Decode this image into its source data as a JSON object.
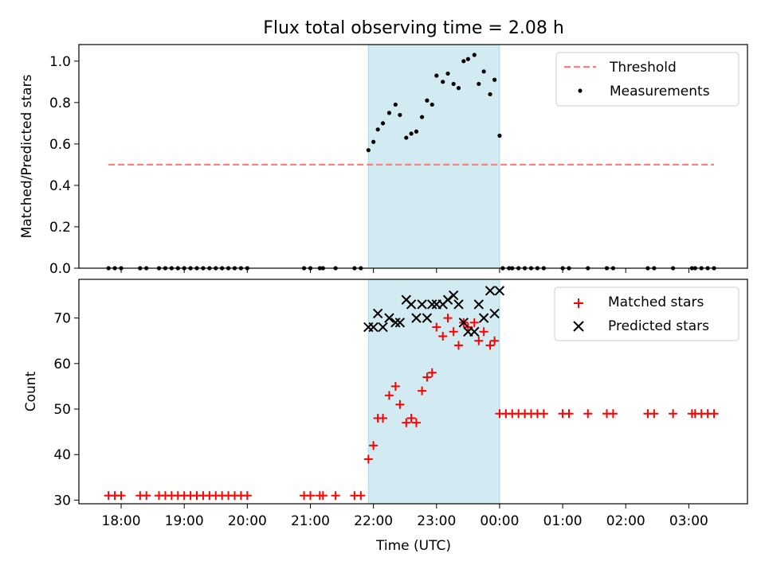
{
  "chart_data": [
    {
      "type": "scatter",
      "title": "Flux total observing time = 2.08 h",
      "xlabel": "",
      "ylabel": "Matched/Predicted stars",
      "x_unit": "hours UTC (continuing past midnight as 24+)",
      "xlim": [
        17.33,
        27.93
      ],
      "ylim": [
        0,
        1.08
      ],
      "yticks": [
        0.0,
        0.2,
        0.4,
        0.6,
        0.8,
        1.0
      ],
      "ytick_labels": [
        "0.0",
        "0.2",
        "0.4",
        "0.6",
        "0.8",
        "1.0"
      ],
      "shaded_interval": [
        21.92,
        24.0
      ],
      "shade_color": "#add8e6",
      "legend": "top-right",
      "threshold": {
        "name": "Threshold",
        "value": 0.5,
        "x_range": [
          17.8,
          27.4
        ],
        "color": "#ff7f7f",
        "style": "dashed"
      },
      "series": [
        {
          "name": "Measurements",
          "color": "#000000",
          "marker": "dot",
          "points": [
            [
              17.8,
              0
            ],
            [
              17.9,
              0
            ],
            [
              18.0,
              0
            ],
            [
              18.3,
              0
            ],
            [
              18.4,
              0
            ],
            [
              18.6,
              0
            ],
            [
              18.7,
              0
            ],
            [
              18.8,
              0
            ],
            [
              18.9,
              0
            ],
            [
              19.0,
              0
            ],
            [
              19.1,
              0
            ],
            [
              19.2,
              0
            ],
            [
              19.3,
              0
            ],
            [
              19.4,
              0
            ],
            [
              19.5,
              0
            ],
            [
              19.6,
              0
            ],
            [
              19.7,
              0
            ],
            [
              19.8,
              0
            ],
            [
              19.9,
              0
            ],
            [
              20.0,
              0
            ],
            [
              20.9,
              0
            ],
            [
              21.0,
              0
            ],
            [
              21.15,
              0
            ],
            [
              21.2,
              0
            ],
            [
              21.4,
              0
            ],
            [
              21.7,
              0
            ],
            [
              21.8,
              0
            ],
            [
              21.92,
              0.57
            ],
            [
              22.0,
              0.61
            ],
            [
              22.07,
              0.67
            ],
            [
              22.15,
              0.7
            ],
            [
              22.25,
              0.75
            ],
            [
              22.35,
              0.79
            ],
            [
              22.42,
              0.74
            ],
            [
              22.52,
              0.63
            ],
            [
              22.6,
              0.65
            ],
            [
              22.68,
              0.66
            ],
            [
              22.77,
              0.73
            ],
            [
              22.85,
              0.81
            ],
            [
              22.93,
              0.79
            ],
            [
              23.0,
              0.93
            ],
            [
              23.1,
              0.9
            ],
            [
              23.18,
              0.94
            ],
            [
              23.27,
              0.89
            ],
            [
              23.35,
              0.87
            ],
            [
              23.43,
              1.0
            ],
            [
              23.5,
              1.01
            ],
            [
              23.6,
              1.03
            ],
            [
              23.67,
              0.89
            ],
            [
              23.75,
              0.95
            ],
            [
              23.85,
              0.84
            ],
            [
              23.92,
              0.91
            ],
            [
              24.0,
              0.64
            ],
            [
              24.05,
              0
            ],
            [
              24.15,
              0
            ],
            [
              24.2,
              0
            ],
            [
              24.3,
              0
            ],
            [
              24.4,
              0
            ],
            [
              24.5,
              0
            ],
            [
              24.6,
              0
            ],
            [
              24.7,
              0
            ],
            [
              25.0,
              0
            ],
            [
              25.1,
              0
            ],
            [
              25.4,
              0
            ],
            [
              25.7,
              0
            ],
            [
              25.8,
              0
            ],
            [
              26.35,
              0
            ],
            [
              26.45,
              0
            ],
            [
              26.75,
              0
            ],
            [
              27.05,
              0
            ],
            [
              27.1,
              0
            ],
            [
              27.2,
              0
            ],
            [
              27.3,
              0
            ],
            [
              27.4,
              0
            ]
          ]
        }
      ]
    },
    {
      "type": "scatter",
      "title": "",
      "xlabel": "Time (UTC)",
      "ylabel": "Count",
      "x_unit": "hours UTC (continuing past midnight as 24+)",
      "xlim": [
        17.33,
        27.93
      ],
      "ylim": [
        29.2,
        78.5
      ],
      "yticks": [
        30,
        40,
        50,
        60,
        70
      ],
      "ytick_labels": [
        "30",
        "40",
        "50",
        "60",
        "70"
      ],
      "xticks": [
        18,
        19,
        20,
        21,
        22,
        23,
        24,
        25,
        26,
        27
      ],
      "xtick_labels": [
        "18:00",
        "19:00",
        "20:00",
        "21:00",
        "22:00",
        "23:00",
        "00:00",
        "01:00",
        "02:00",
        "03:00"
      ],
      "shaded_interval": [
        21.92,
        24.0
      ],
      "shade_color": "#add8e6",
      "legend": "top-right",
      "series": [
        {
          "name": "Matched stars",
          "color": "#ff0000",
          "marker": "plus",
          "points": [
            [
              17.8,
              31
            ],
            [
              17.9,
              31
            ],
            [
              18.0,
              31
            ],
            [
              18.3,
              31
            ],
            [
              18.4,
              31
            ],
            [
              18.6,
              31
            ],
            [
              18.7,
              31
            ],
            [
              18.8,
              31
            ],
            [
              18.9,
              31
            ],
            [
              19.0,
              31
            ],
            [
              19.1,
              31
            ],
            [
              19.2,
              31
            ],
            [
              19.3,
              31
            ],
            [
              19.4,
              31
            ],
            [
              19.5,
              31
            ],
            [
              19.6,
              31
            ],
            [
              19.7,
              31
            ],
            [
              19.8,
              31
            ],
            [
              19.9,
              31
            ],
            [
              20.0,
              31
            ],
            [
              20.9,
              31
            ],
            [
              21.0,
              31
            ],
            [
              21.15,
              31
            ],
            [
              21.2,
              31
            ],
            [
              21.4,
              31
            ],
            [
              21.7,
              31
            ],
            [
              21.8,
              31
            ],
            [
              21.92,
              39
            ],
            [
              22.0,
              42
            ],
            [
              22.07,
              48
            ],
            [
              22.15,
              48
            ],
            [
              22.25,
              53
            ],
            [
              22.35,
              55
            ],
            [
              22.42,
              51
            ],
            [
              22.52,
              47
            ],
            [
              22.6,
              48
            ],
            [
              22.68,
              47
            ],
            [
              22.77,
              54
            ],
            [
              22.85,
              57
            ],
            [
              22.93,
              58
            ],
            [
              23.0,
              68
            ],
            [
              23.1,
              66
            ],
            [
              23.18,
              70
            ],
            [
              23.27,
              67
            ],
            [
              23.35,
              64
            ],
            [
              23.43,
              69
            ],
            [
              23.5,
              68
            ],
            [
              23.6,
              69
            ],
            [
              23.67,
              65
            ],
            [
              23.75,
              67
            ],
            [
              23.85,
              64
            ],
            [
              23.92,
              65
            ],
            [
              24.0,
              49
            ],
            [
              24.1,
              49
            ],
            [
              24.2,
              49
            ],
            [
              24.3,
              49
            ],
            [
              24.4,
              49
            ],
            [
              24.5,
              49
            ],
            [
              24.6,
              49
            ],
            [
              24.7,
              49
            ],
            [
              25.0,
              49
            ],
            [
              25.1,
              49
            ],
            [
              25.4,
              49
            ],
            [
              25.7,
              49
            ],
            [
              25.8,
              49
            ],
            [
              26.35,
              49
            ],
            [
              26.45,
              49
            ],
            [
              26.75,
              49
            ],
            [
              27.05,
              49
            ],
            [
              27.1,
              49
            ],
            [
              27.2,
              49
            ],
            [
              27.3,
              49
            ],
            [
              27.4,
              49
            ]
          ]
        },
        {
          "name": "Predicted stars",
          "color": "#000000",
          "marker": "x",
          "points": [
            [
              21.92,
              68
            ],
            [
              22.0,
              68
            ],
            [
              22.07,
              71
            ],
            [
              22.15,
              68
            ],
            [
              22.25,
              70
            ],
            [
              22.35,
              69
            ],
            [
              22.42,
              69
            ],
            [
              22.52,
              74
            ],
            [
              22.6,
              73
            ],
            [
              22.68,
              70
            ],
            [
              22.77,
              73
            ],
            [
              22.85,
              70
            ],
            [
              22.93,
              73
            ],
            [
              23.0,
              73
            ],
            [
              23.1,
              73
            ],
            [
              23.18,
              74
            ],
            [
              23.27,
              75
            ],
            [
              23.35,
              73
            ],
            [
              23.43,
              69
            ],
            [
              23.5,
              67
            ],
            [
              23.6,
              67
            ],
            [
              23.67,
              73
            ],
            [
              23.75,
              70
            ],
            [
              23.85,
              76
            ],
            [
              23.92,
              71
            ],
            [
              24.0,
              76
            ]
          ]
        }
      ]
    }
  ]
}
